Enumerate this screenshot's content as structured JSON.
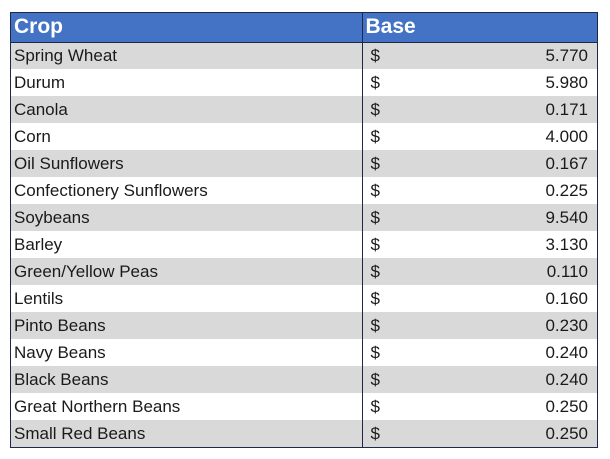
{
  "table": {
    "headers": {
      "crop": "Crop",
      "base": "Base"
    },
    "currency_symbol": "$",
    "rows": [
      {
        "crop": "Spring Wheat",
        "base": "5.770"
      },
      {
        "crop": "Durum",
        "base": "5.980"
      },
      {
        "crop": "Canola",
        "base": "0.171"
      },
      {
        "crop": "Corn",
        "base": "4.000"
      },
      {
        "crop": "Oil Sunflowers",
        "base": "0.167"
      },
      {
        "crop": "Confectionery Sunflowers",
        "base": "0.225"
      },
      {
        "crop": "Soybeans",
        "base": "9.540"
      },
      {
        "crop": "Barley",
        "base": "3.130"
      },
      {
        "crop": "Green/Yellow Peas",
        "base": "0.110"
      },
      {
        "crop": "Lentils",
        "base": "0.160"
      },
      {
        "crop": "Pinto Beans",
        "base": "0.230"
      },
      {
        "crop": "Navy Beans",
        "base": "0.240"
      },
      {
        "crop": "Black Beans",
        "base": "0.240"
      },
      {
        "crop": "Great Northern Beans",
        "base": "0.250"
      },
      {
        "crop": "Small Red Beans",
        "base": "0.250"
      }
    ]
  },
  "colors": {
    "header_bg": "#4472c4",
    "header_text": "#ffffff",
    "stripe_bg": "#d9d9d9",
    "border": "#1e2a45"
  }
}
